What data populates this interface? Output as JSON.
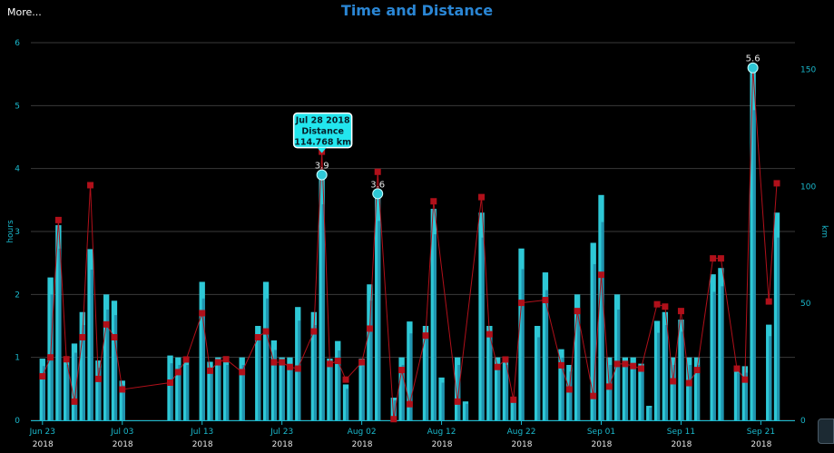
{
  "menu": {
    "more_label": "More..."
  },
  "chart_data": {
    "type": "bar",
    "title": "Time and Distance",
    "ylabel": "hours",
    "y2label": "km",
    "ylim": [
      0,
      6
    ],
    "y2lim": [
      0,
      161.4
    ],
    "yticks": [
      "0",
      "1",
      "2",
      "3",
      "4",
      "5",
      "6"
    ],
    "y2ticks": [
      "0",
      "50",
      "100",
      "150"
    ],
    "grid": true,
    "xlim": [
      "2018-06-22",
      "2018-09-23"
    ],
    "xticks": [
      {
        "top": "Jun 23",
        "bottom": "2018"
      },
      {
        "top": "Jul 03",
        "bottom": "2018"
      },
      {
        "top": "Jul 13",
        "bottom": "2018"
      },
      {
        "top": "Jul 23",
        "bottom": "2018"
      },
      {
        "top": "Aug 02",
        "bottom": "2018"
      },
      {
        "top": "Aug 12",
        "bottom": "2018"
      },
      {
        "top": "Aug 22",
        "bottom": "2018"
      },
      {
        "top": "Sep 01",
        "bottom": "2018"
      },
      {
        "top": "Sep 11",
        "bottom": "2018"
      },
      {
        "top": "Sep 21",
        "bottom": "2018"
      }
    ],
    "xtick_dates": [
      "2018-06-23",
      "2018-07-03",
      "2018-07-13",
      "2018-07-23",
      "2018-08-02",
      "2018-08-12",
      "2018-08-22",
      "2018-09-01",
      "2018-09-11",
      "2018-09-21"
    ],
    "series": [
      {
        "kind": "bar",
        "axis": "hours",
        "color": "#2ec8d6",
        "points": [
          [
            "2018-06-23",
            0.98
          ],
          [
            "2018-06-24",
            2.27
          ],
          [
            "2018-06-25",
            3.1
          ],
          [
            "2018-06-26",
            1.0
          ],
          [
            "2018-06-27",
            1.22
          ],
          [
            "2018-06-28",
            1.72
          ],
          [
            "2018-06-29",
            2.72
          ],
          [
            "2018-06-30",
            0.95
          ],
          [
            "2018-07-01",
            2.0
          ],
          [
            "2018-07-02",
            1.9
          ],
          [
            "2018-07-03",
            0.63
          ],
          [
            "2018-07-09",
            1.03
          ],
          [
            "2018-07-10",
            1.0
          ],
          [
            "2018-07-11",
            1.0
          ],
          [
            "2018-07-13",
            2.2
          ],
          [
            "2018-07-14",
            0.93
          ],
          [
            "2018-07-15",
            1.0
          ],
          [
            "2018-07-16",
            1.0
          ],
          [
            "2018-07-18",
            1.0
          ],
          [
            "2018-07-20",
            1.5
          ],
          [
            "2018-07-21",
            2.2
          ],
          [
            "2018-07-22",
            1.27
          ],
          [
            "2018-07-23",
            1.0
          ],
          [
            "2018-07-24",
            1.0
          ],
          [
            "2018-07-25",
            1.8
          ],
          [
            "2018-07-27",
            1.72
          ],
          [
            "2018-07-28",
            3.9
          ],
          [
            "2018-07-29",
            0.98
          ],
          [
            "2018-07-30",
            1.26
          ],
          [
            "2018-07-31",
            0.57
          ],
          [
            "2018-08-02",
            0.98
          ],
          [
            "2018-08-03",
            2.16
          ],
          [
            "2018-08-04",
            3.6
          ],
          [
            "2018-08-06",
            0.36
          ],
          [
            "2018-08-07",
            1.0
          ],
          [
            "2018-08-08",
            1.57
          ],
          [
            "2018-08-10",
            1.5
          ],
          [
            "2018-08-11",
            3.36
          ],
          [
            "2018-08-12",
            0.68
          ],
          [
            "2018-08-14",
            1.0
          ],
          [
            "2018-08-15",
            0.3
          ],
          [
            "2018-08-17",
            3.3
          ],
          [
            "2018-08-18",
            1.5
          ],
          [
            "2018-08-19",
            1.0
          ],
          [
            "2018-08-20",
            1.0
          ],
          [
            "2018-08-21",
            0.36
          ],
          [
            "2018-08-22",
            2.73
          ],
          [
            "2018-08-24",
            1.5
          ],
          [
            "2018-08-25",
            2.35
          ],
          [
            "2018-08-27",
            1.13
          ],
          [
            "2018-08-28",
            0.88
          ],
          [
            "2018-08-29",
            2.0
          ],
          [
            "2018-08-31",
            2.82
          ],
          [
            "2018-09-01",
            3.58
          ],
          [
            "2018-09-02",
            1.0
          ],
          [
            "2018-09-03",
            2.0
          ],
          [
            "2018-09-04",
            1.0
          ],
          [
            "2018-09-05",
            1.0
          ],
          [
            "2018-09-06",
            0.9
          ],
          [
            "2018-09-07",
            0.23
          ],
          [
            "2018-09-08",
            1.58
          ],
          [
            "2018-09-09",
            1.72
          ],
          [
            "2018-09-10",
            1.0
          ],
          [
            "2018-09-11",
            1.6
          ],
          [
            "2018-09-12",
            1.0
          ],
          [
            "2018-09-13",
            1.0
          ],
          [
            "2018-09-15",
            2.32
          ],
          [
            "2018-09-16",
            2.42
          ],
          [
            "2018-09-18",
            0.86
          ],
          [
            "2018-09-19",
            0.86
          ],
          [
            "2018-09-20",
            5.6
          ],
          [
            "2018-09-22",
            1.52
          ],
          [
            "2018-09-23",
            3.3
          ]
        ]
      },
      {
        "kind": "line",
        "axis": "km",
        "color": "#b0101a",
        "points": [
          [
            "2018-06-23",
            18.8
          ],
          [
            "2018-06-24",
            26.9
          ],
          [
            "2018-06-25",
            85.6
          ],
          [
            "2018-06-26",
            26.1
          ],
          [
            "2018-06-27",
            8.0
          ],
          [
            "2018-06-28",
            35.5
          ],
          [
            "2018-06-29",
            100.5
          ],
          [
            "2018-06-30",
            17.7
          ],
          [
            "2018-07-01",
            41.0
          ],
          [
            "2018-07-02",
            35.5
          ],
          [
            "2018-07-03",
            13.2
          ],
          [
            "2018-07-09",
            16.1
          ],
          [
            "2018-07-10",
            20.6
          ],
          [
            "2018-07-11",
            26.0
          ],
          [
            "2018-07-13",
            45.8
          ],
          [
            "2018-07-14",
            21.2
          ],
          [
            "2018-07-15",
            24.8
          ],
          [
            "2018-07-16",
            26.1
          ],
          [
            "2018-07-18",
            20.6
          ],
          [
            "2018-07-20",
            35.5
          ],
          [
            "2018-07-21",
            38.0
          ],
          [
            "2018-07-22",
            24.8
          ],
          [
            "2018-07-23",
            24.8
          ],
          [
            "2018-07-24",
            22.8
          ],
          [
            "2018-07-25",
            22.1
          ],
          [
            "2018-07-27",
            38.0
          ],
          [
            "2018-07-28",
            114.8
          ],
          [
            "2018-07-29",
            24.1
          ],
          [
            "2018-07-30",
            25.4
          ],
          [
            "2018-07-31",
            17.4
          ],
          [
            "2018-08-02",
            24.8
          ],
          [
            "2018-08-03",
            39.2
          ],
          [
            "2018-08-04",
            106.2
          ],
          [
            "2018-08-06",
            0.5
          ],
          [
            "2018-08-07",
            21.5
          ],
          [
            "2018-08-08",
            6.9
          ],
          [
            "2018-08-10",
            36.2
          ],
          [
            "2018-08-11",
            93.6
          ],
          [
            "2018-08-12",
            null
          ],
          [
            "2018-08-14",
            8.0
          ],
          [
            "2018-08-15",
            null
          ],
          [
            "2018-08-17",
            95.4
          ],
          [
            "2018-08-18",
            36.8
          ],
          [
            "2018-08-19",
            22.8
          ],
          [
            "2018-08-20",
            26.0
          ],
          [
            "2018-08-21",
            8.8
          ],
          [
            "2018-08-22",
            50.2
          ],
          [
            "2018-08-25",
            51.4
          ],
          [
            "2018-08-27",
            23.5
          ],
          [
            "2018-08-28",
            13.2
          ],
          [
            "2018-08-29",
            46.7
          ],
          [
            "2018-08-31",
            10.4
          ],
          [
            "2018-09-01",
            62.2
          ],
          [
            "2018-09-02",
            14.4
          ],
          [
            "2018-09-03",
            24.1
          ],
          [
            "2018-09-04",
            24.1
          ],
          [
            "2018-09-05",
            23.2
          ],
          [
            "2018-09-06",
            22.1
          ],
          [
            "2018-09-08",
            49.6
          ],
          [
            "2018-09-09",
            48.6
          ],
          [
            "2018-09-10",
            16.7
          ],
          [
            "2018-09-11",
            46.7
          ],
          [
            "2018-09-12",
            15.9
          ],
          [
            "2018-09-13",
            21.5
          ],
          [
            "2018-09-15",
            69.2
          ],
          [
            "2018-09-16",
            69.2
          ],
          [
            "2018-09-18",
            22.1
          ],
          [
            "2018-09-19",
            17.4
          ],
          [
            "2018-09-20",
            150.8
          ],
          [
            "2018-09-22",
            50.8
          ],
          [
            "2018-09-23",
            101.3
          ]
        ]
      }
    ],
    "data_labels": [
      {
        "date": "2018-07-28",
        "value": 3.9,
        "text": "3.9"
      },
      {
        "date": "2018-08-04",
        "value": 3.6,
        "text": "3.6"
      },
      {
        "date": "2018-09-20",
        "value": 5.6,
        "text": "5.6"
      }
    ],
    "tooltip": {
      "date_label": "Jul 28 2018",
      "metric": "Distance",
      "value": "114.768 km",
      "anchor_date": "2018-07-28",
      "anchor_value": 3.9
    },
    "colors": {
      "accent": "#2a86d4",
      "axis_text": "#1ab8cc",
      "bar": "#2ec8d6",
      "bar_shade": "#1b7d9e",
      "line": "#b0101a",
      "marker": "#b0101a",
      "grid": "#3a3a3a",
      "tooltip_bg": "#22e6ee"
    }
  }
}
